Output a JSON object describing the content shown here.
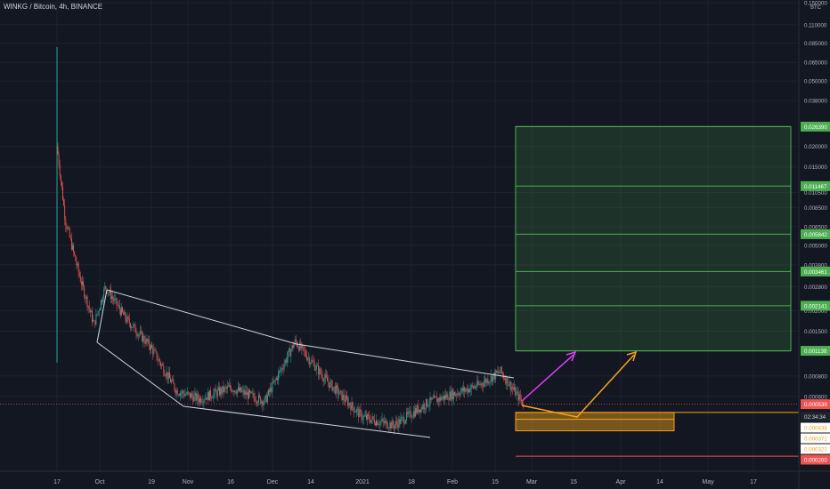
{
  "header": {
    "title": "WINKG / Bitcoin, 4h, BINANCE"
  },
  "axis": {
    "unit": "BTC"
  },
  "chart_data": {
    "type": "candlestick",
    "title": "WINKG / Bitcoin, 4h, BINANCE",
    "y_scale": "log",
    "y_unit": "BTC",
    "y_ticks": [
      "0.150000",
      "0.110000",
      "0.085000",
      "0.065000",
      "0.050000",
      "0.038000",
      "0.020000",
      "0.015000",
      "0.010500",
      "0.008500",
      "0.006500",
      "0.005000",
      "0.003800",
      "0.002800",
      "0.002000",
      "0.001500",
      "0.000800",
      "0.000600"
    ],
    "x_ticks": [
      "17",
      "Oct",
      "19",
      "Nov",
      "16",
      "Dec",
      "14",
      "2021",
      "18",
      "Feb",
      "15",
      "Mar",
      "15",
      "Apr",
      "14",
      "May",
      "17"
    ],
    "current_price": {
      "value": "0.000539",
      "countdown": "02:34:34",
      "color": "#ef5350"
    },
    "price_path": [
      {
        "x": "Sep 17",
        "price": 0.02
      },
      {
        "x": "Sep 20",
        "price": 0.007
      },
      {
        "x": "Sep 25",
        "price": 0.0032
      },
      {
        "x": "Sep 30",
        "price": 0.00165
      },
      {
        "x": "Oct 3",
        "price": 0.0028
      },
      {
        "x": "Oct 10",
        "price": 0.0018
      },
      {
        "x": "Oct 19",
        "price": 0.0012
      },
      {
        "x": "Oct 28",
        "price": 0.00065
      },
      {
        "x": "Nov 5",
        "price": 0.00058
      },
      {
        "x": "Nov 16",
        "price": 0.00068
      },
      {
        "x": "Nov 28",
        "price": 0.00056
      },
      {
        "x": "Dec 9",
        "price": 0.0013
      },
      {
        "x": "Dec 20",
        "price": 0.00075
      },
      {
        "x": "Jan 1",
        "price": 0.00045
      },
      {
        "x": "Jan 12",
        "price": 0.0004
      },
      {
        "x": "Jan 24",
        "price": 0.00055
      },
      {
        "x": "Feb 10",
        "price": 0.0007
      },
      {
        "x": "Feb 18",
        "price": 0.00085
      },
      {
        "x": "Feb 26",
        "price": 0.000539
      }
    ],
    "target_levels": [
      {
        "value": "0.026390",
        "color": "#4caf50"
      },
      {
        "value": "0.011467",
        "color": "#4caf50"
      },
      {
        "value": "0.005842",
        "color": "#4caf50"
      },
      {
        "value": "0.003461",
        "color": "#4caf50"
      },
      {
        "value": "0.002141",
        "color": "#4caf50"
      },
      {
        "value": "0.001139",
        "color": "#4caf50"
      }
    ],
    "support_levels": [
      {
        "value": "0.000436",
        "color": "#f7a21b"
      },
      {
        "value": "0.000371",
        "color": "#f7a21b"
      },
      {
        "value": "0.000327",
        "color": "#f7a21b"
      },
      {
        "value": "0.000260",
        "color": "#ef5350"
      }
    ],
    "colors": {
      "background": "#131722",
      "up": "#26a69a",
      "down": "#ef5350",
      "target_zone": "#4caf50",
      "support_zone": "#f7a21b",
      "wedge": "#d1d4dc",
      "arrow_1": "#e040fb",
      "arrow_2": "#f7a21b"
    },
    "grid": true
  }
}
